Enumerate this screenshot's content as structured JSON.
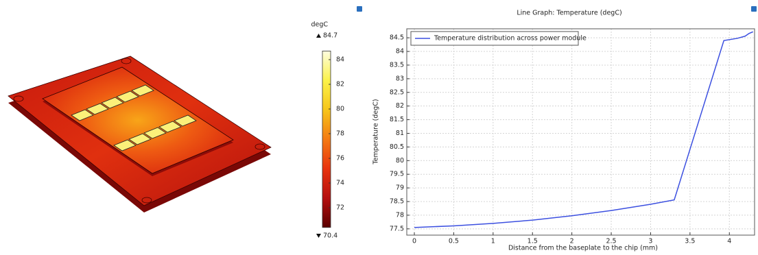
{
  "chart_data": [
    {
      "type": "colorbar",
      "unit": "degC",
      "max": 84.7,
      "min": 70.4,
      "ylim": [
        70.4,
        84.7
      ],
      "yticks": [
        72,
        74,
        76,
        78,
        80,
        82,
        84
      ],
      "colors": [
        "#5a0000",
        "#b50f0f",
        "#e8330e",
        "#f47a12",
        "#f6c51a",
        "#fbf24a",
        "#fdfde0"
      ]
    },
    {
      "type": "line",
      "title": "Line Graph: Temperature (degC)",
      "x_label": "Distance from the baseplate to the chip (mm)",
      "y_label": "Temperature (degC)",
      "xlim": [
        -0.096,
        4.32
      ],
      "ylim": [
        77.27,
        84.83
      ],
      "xticks": [
        0,
        0.5,
        1,
        1.5,
        2,
        2.5,
        3,
        3.5,
        4
      ],
      "yticks": [
        77.5,
        78,
        78.5,
        79,
        79.5,
        80,
        80.5,
        81,
        81.5,
        82,
        82.5,
        83,
        83.5,
        84,
        84.5
      ],
      "grid": true,
      "legend": "upper left",
      "series": [
        {
          "name": "Temperature distribution across power module",
          "color": "#3b4fe0",
          "x": [
            0,
            0.5,
            1,
            1.5,
            2,
            2.5,
            3,
            3.3,
            3.93,
            4.1,
            4.2,
            4.25,
            4.3
          ],
          "values": [
            77.55,
            77.61,
            77.7,
            77.82,
            77.98,
            78.17,
            78.4,
            78.56,
            84.4,
            84.48,
            84.56,
            84.66,
            84.72
          ]
        }
      ]
    }
  ]
}
